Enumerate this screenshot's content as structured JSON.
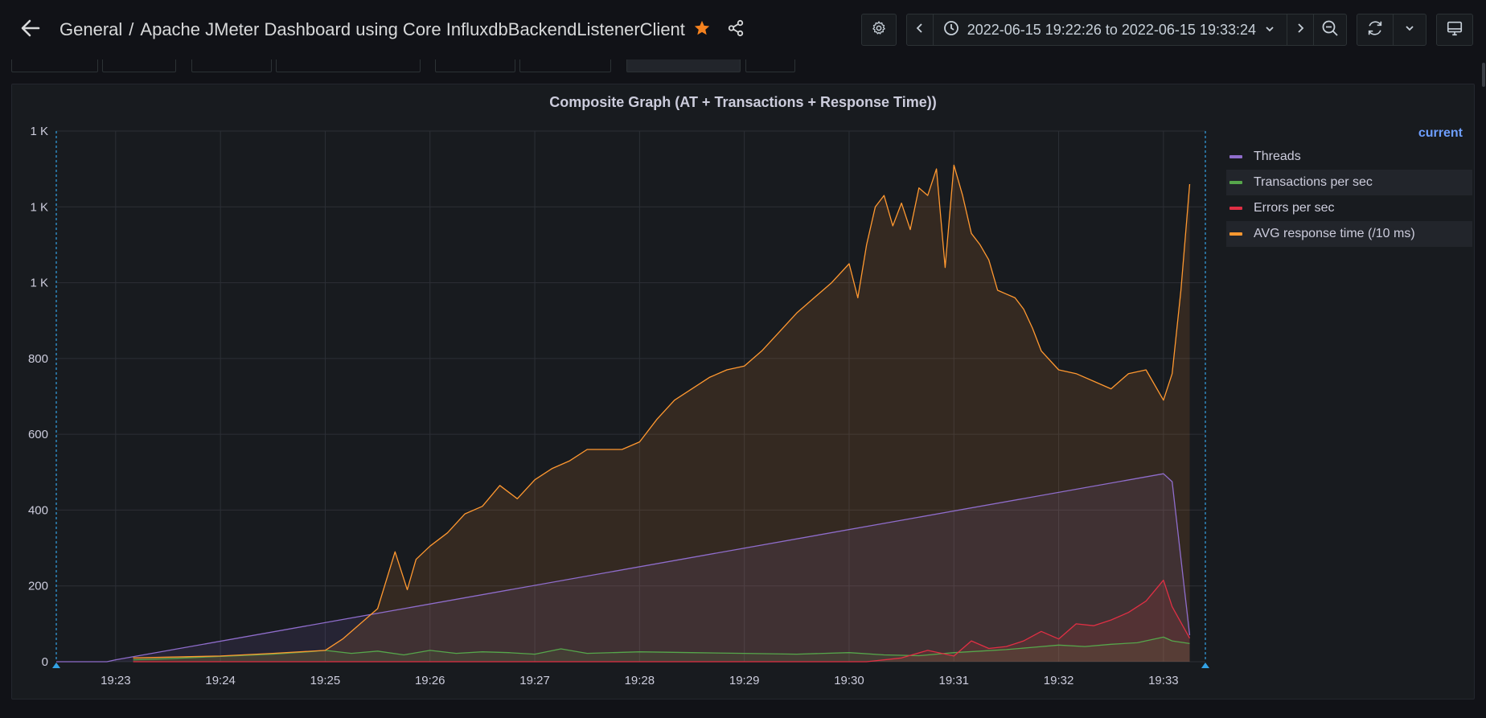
{
  "header": {
    "folder": "General",
    "separator": "/",
    "dashboard_title": "Apache JMeter Dashboard using Core InfluxdbBackendListenerClient",
    "time_range": "2022-06-15 19:22:26 to 2022-06-15 19:33:24",
    "icons": {
      "back": "arrow-left-icon",
      "star": "star-icon",
      "share": "share-icon",
      "settings": "gear-icon",
      "prev": "chevron-left-icon",
      "clock": "clock-icon",
      "dropdown": "chevron-down-icon",
      "next": "chevron-right-icon",
      "zoom_out": "zoom-out-icon",
      "refresh": "refresh-icon",
      "refresh_interval": "chevron-down-icon",
      "tv": "monitor-icon"
    }
  },
  "panel": {
    "title": "Composite Graph (AT + Transactions + Response Time))"
  },
  "chart_data": {
    "type": "line",
    "title": "Composite Graph (AT + Transactions + Response Time))",
    "xlabel": "",
    "ylabel": "",
    "x_ticks": [
      "19:23",
      "19:24",
      "19:25",
      "19:26",
      "19:27",
      "19:28",
      "19:29",
      "19:30",
      "19:31",
      "19:32",
      "19:33"
    ],
    "y_ticks": [
      {
        "value": 0,
        "label": "0"
      },
      {
        "value": 200,
        "label": "200"
      },
      {
        "value": 400,
        "label": "400"
      },
      {
        "value": 600,
        "label": "600"
      },
      {
        "value": 800,
        "label": "800"
      },
      {
        "value": 1000,
        "label": "1 K"
      },
      {
        "value": 1200,
        "label": "1 K"
      },
      {
        "value": 1400,
        "label": "1 K"
      }
    ],
    "xlim": [
      "19:22:26",
      "19:33:24"
    ],
    "ylim": [
      0,
      1400
    ],
    "grid": true,
    "fill": true,
    "legend_position": "right",
    "legend_header": "current",
    "time_marker_color": "#33a2e5",
    "series": [
      {
        "name": "Threads",
        "color": "#8f6dcc",
        "x": [
          "19:22:26",
          "19:22:55",
          "19:23:00",
          "19:33:00",
          "19:33:05",
          "19:33:15"
        ],
        "values": [
          0,
          0,
          5,
          496,
          475,
          70
        ]
      },
      {
        "name": "Transactions per sec",
        "color": "#56a64b",
        "x": [
          "19:23:10",
          "19:23:30",
          "19:23:50",
          "19:24:10",
          "19:24:30",
          "19:24:50",
          "19:25:00",
          "19:25:15",
          "19:25:30",
          "19:25:45",
          "19:26:00",
          "19:26:15",
          "19:26:30",
          "19:26:45",
          "19:27:00",
          "19:27:15",
          "19:27:30",
          "19:28:00",
          "19:28:30",
          "19:29:00",
          "19:29:30",
          "19:30:00",
          "19:30:20",
          "19:30:40",
          "19:31:00",
          "19:31:15",
          "19:31:30",
          "19:31:45",
          "19:32:00",
          "19:32:15",
          "19:32:30",
          "19:32:45",
          "19:33:00",
          "19:33:05",
          "19:33:15"
        ],
        "values": [
          5,
          8,
          12,
          16,
          20,
          26,
          30,
          22,
          28,
          18,
          30,
          22,
          26,
          24,
          20,
          34,
          22,
          26,
          24,
          22,
          20,
          24,
          18,
          16,
          24,
          28,
          32,
          38,
          44,
          40,
          46,
          50,
          65,
          55,
          48
        ]
      },
      {
        "name": "Errors per sec",
        "color": "#e02f44",
        "x": [
          "19:23:10",
          "19:30:10",
          "19:30:30",
          "19:30:45",
          "19:31:00",
          "19:31:10",
          "19:31:20",
          "19:31:30",
          "19:31:40",
          "19:31:50",
          "19:32:00",
          "19:32:10",
          "19:32:20",
          "19:32:30",
          "19:32:40",
          "19:32:50",
          "19:33:00",
          "19:33:05",
          "19:33:15"
        ],
        "values": [
          0,
          0,
          10,
          30,
          15,
          55,
          35,
          40,
          55,
          80,
          60,
          100,
          95,
          110,
          130,
          160,
          215,
          145,
          62
        ]
      },
      {
        "name": "AVG response time (/10 ms)",
        "color": "#ff9830",
        "x": [
          "19:23:10",
          "19:23:30",
          "19:24:00",
          "19:24:30",
          "19:25:00",
          "19:25:10",
          "19:25:20",
          "19:25:30",
          "19:25:40",
          "19:25:47",
          "19:25:52",
          "19:26:00",
          "19:26:10",
          "19:26:20",
          "19:26:30",
          "19:26:40",
          "19:26:50",
          "19:27:00",
          "19:27:10",
          "19:27:20",
          "19:27:30",
          "19:27:40",
          "19:27:50",
          "19:28:00",
          "19:28:10",
          "19:28:20",
          "19:28:30",
          "19:28:40",
          "19:28:50",
          "19:29:00",
          "19:29:10",
          "19:29:20",
          "19:29:30",
          "19:29:40",
          "19:29:50",
          "19:30:00",
          "19:30:05",
          "19:30:10",
          "19:30:15",
          "19:30:20",
          "19:30:25",
          "19:30:30",
          "19:30:35",
          "19:30:40",
          "19:30:45",
          "19:30:50",
          "19:30:55",
          "19:31:00",
          "19:31:05",
          "19:31:10",
          "19:31:15",
          "19:31:20",
          "19:31:25",
          "19:31:30",
          "19:31:35",
          "19:31:40",
          "19:31:45",
          "19:31:50",
          "19:32:00",
          "19:32:10",
          "19:32:20",
          "19:32:30",
          "19:32:40",
          "19:32:50",
          "19:33:00",
          "19:33:05",
          "19:33:10",
          "19:33:15"
        ],
        "values": [
          10,
          12,
          15,
          22,
          30,
          60,
          100,
          140,
          290,
          190,
          270,
          305,
          340,
          390,
          410,
          465,
          430,
          480,
          510,
          530,
          560,
          560,
          560,
          580,
          640,
          690,
          720,
          750,
          770,
          780,
          820,
          870,
          920,
          960,
          1000,
          1050,
          960,
          1100,
          1200,
          1230,
          1150,
          1210,
          1140,
          1250,
          1230,
          1300,
          1040,
          1310,
          1230,
          1130,
          1100,
          1060,
          980,
          970,
          960,
          930,
          880,
          820,
          770,
          760,
          740,
          720,
          760,
          770,
          690,
          760,
          980,
          1260
        ]
      }
    ]
  }
}
